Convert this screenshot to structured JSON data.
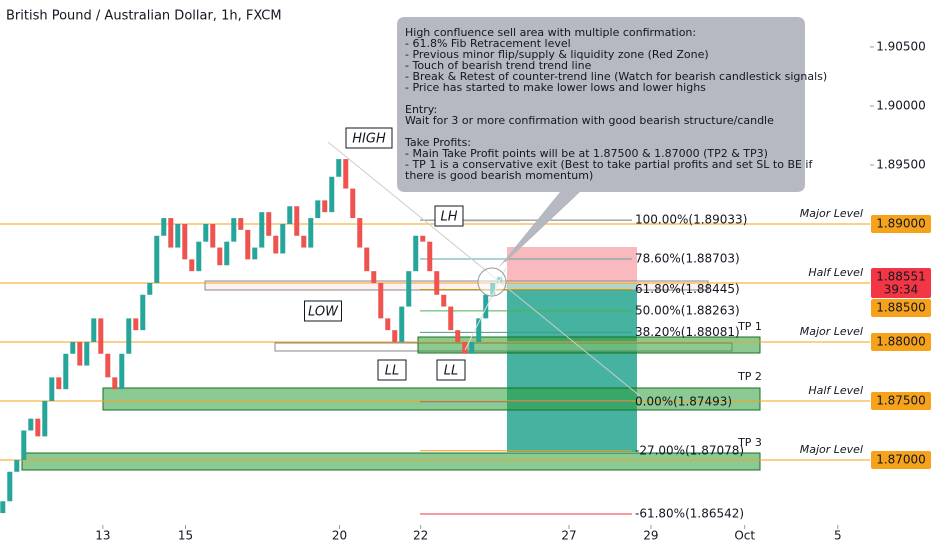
{
  "chart_data": {
    "type": "candlestick",
    "title": "British Pound / Australian Dollar, 1h, FXCM",
    "up_color": "#26a69a",
    "down_color": "#ef5350",
    "open": [
      1.8655,
      1.8665,
      1.869,
      1.87,
      1.8725,
      1.8735,
      1.872,
      1.875,
      1.877,
      1.876,
      1.879,
      1.88,
      1.878,
      1.88,
      1.882,
      1.879,
      1.877,
      1.876,
      1.879,
      1.882,
      1.881,
      1.884,
      1.885,
      1.889,
      1.8905,
      1.888,
      1.89,
      1.887,
      1.886,
      1.8885,
      1.89,
      1.888,
      1.8865,
      1.8885,
      1.8905,
      1.8895,
      1.887,
      1.888,
      1.891,
      1.889,
      1.8875,
      1.89,
      1.8915,
      1.889,
      1.888,
      1.8905,
      1.892,
      1.891,
      1.894,
      1.8955,
      1.893,
      1.8905,
      1.888,
      1.886,
      1.885,
      1.882,
      1.881,
      1.88,
      1.883,
      1.886,
      1.889,
      1.8885,
      1.886,
      1.884,
      1.883,
      1.881,
      1.88,
      1.879,
      1.88,
      1.882,
      1.884,
      1.885
    ],
    "close": [
      1.8665,
      1.869,
      1.87,
      1.8725,
      1.8735,
      1.872,
      1.875,
      1.877,
      1.876,
      1.879,
      1.88,
      1.878,
      1.88,
      1.882,
      1.879,
      1.877,
      1.876,
      1.879,
      1.882,
      1.881,
      1.884,
      1.885,
      1.889,
      1.8905,
      1.888,
      1.89,
      1.887,
      1.886,
      1.8885,
      1.89,
      1.888,
      1.8865,
      1.8885,
      1.8905,
      1.8895,
      1.887,
      1.888,
      1.891,
      1.889,
      1.8875,
      1.89,
      1.8915,
      1.889,
      1.888,
      1.8905,
      1.892,
      1.891,
      1.894,
      1.8955,
      1.893,
      1.8905,
      1.888,
      1.886,
      1.885,
      1.882,
      1.881,
      1.88,
      1.883,
      1.886,
      1.889,
      1.8885,
      1.886,
      1.884,
      1.883,
      1.881,
      1.88,
      1.879,
      1.88,
      1.882,
      1.884,
      1.885,
      1.8855
    ],
    "xlim": [
      -0.4,
      123.9
    ],
    "xticks": [
      {
        "value": 14.3,
        "label": "13"
      },
      {
        "value": 26.1,
        "label": "15"
      },
      {
        "value": 48.1,
        "label": "20"
      },
      {
        "value": 59.7,
        "label": "22"
      },
      {
        "value": 80.9,
        "label": "27"
      },
      {
        "value": 92.6,
        "label": "29"
      },
      {
        "value": 106,
        "label": "Oct"
      },
      {
        "value": 119.3,
        "label": "5"
      }
    ],
    "ylim": [
      1.86237,
      1.90898
    ],
    "yticks": [
      {
        "value": 1.905,
        "label": "1.90500"
      },
      {
        "value": 1.9,
        "label": "1.90000"
      },
      {
        "value": 1.895,
        "label": "1.89500"
      }
    ],
    "price_tags": [
      {
        "value": 1.89,
        "label": "1.89000",
        "color": "#f7a21b"
      },
      {
        "value": 1.88551,
        "label": "1.88551",
        "sub": "39:34",
        "color": "#f23645"
      },
      {
        "value": 1.885,
        "label": "1.88500",
        "color": "#f7a21b"
      },
      {
        "value": 1.88,
        "label": "1.88000",
        "color": "#f7a21b"
      },
      {
        "value": 1.875,
        "label": "1.87500",
        "color": "#f7a21b"
      },
      {
        "value": 1.87,
        "label": "1.87000",
        "color": "#f7a21b"
      }
    ],
    "levels": [
      {
        "value": 1.89,
        "label": "Major Level"
      },
      {
        "value": 1.885,
        "label": "Half Level"
      },
      {
        "value": 1.88,
        "label": "Major Level"
      },
      {
        "value": 1.875,
        "label": "Half Level"
      },
      {
        "value": 1.87,
        "label": "Major Level"
      }
    ],
    "level_color": "#f7a21b",
    "fib": [
      {
        "value": 1.89033,
        "label": "100.00%(1.89033)",
        "color": "#787b86"
      },
      {
        "value": 1.88703,
        "label": "78.60%(1.88703)",
        "color": "#5aa5a5"
      },
      {
        "value": 1.88445,
        "label": "61.80%(1.88445)",
        "color": "#c9a000"
      },
      {
        "value": 1.88263,
        "label": "50.00%(1.88263)",
        "color": "#4caf50"
      },
      {
        "value": 1.88081,
        "label": "38.20%(1.88081)",
        "color": "#3f9f7f"
      },
      {
        "value": 1.87493,
        "label": "0.00%(1.87493)",
        "color": "#787b86"
      },
      {
        "value": 1.87078,
        "label": "-27.00%(1.87078)",
        "color": "#f39c12"
      },
      {
        "value": 1.86542,
        "label": "-61.80%(1.86542)",
        "color": "#f23645"
      }
    ],
    "take_profits": [
      "TP 1",
      "TP 2",
      "TP 3"
    ],
    "markers": [
      "HIGH",
      "LH",
      "LOW",
      "LL",
      "LL"
    ],
    "note": [
      [
        "High confluence sell area with multiple confirmation:",
        "- 61.8% Fib Retracement level",
        "- Previous minor flip/supply & liquidity zone (Red Zone)",
        "- Touch of bearish trend trend line",
        "- Break & Retest of counter-trend line (Watch for bearish candlestick signals)",
        "- Price has started to make lower lows and lower highs"
      ],
      [
        "Entry:",
        "Wait for 3 or more confirmation with good bearish structure/candle"
      ],
      [
        "Take Profits:",
        "- Main Take Profit points will be at 1.87500 & 1.87000 (TP2 & TP3)",
        "- TP 1 is a conservative exit (Best to take partial profits and set SL to BE if",
        "there is good bearish momentum)"
      ]
    ]
  }
}
